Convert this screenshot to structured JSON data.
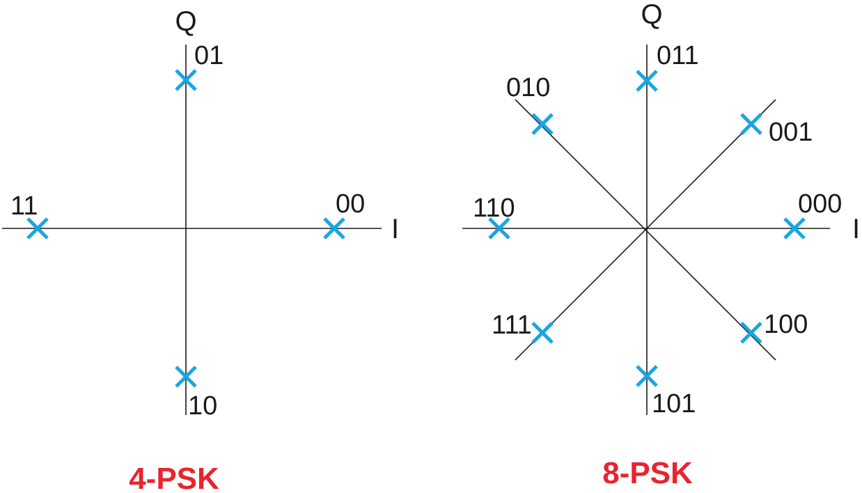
{
  "colors": {
    "marker": "#19a6e0",
    "title": "#e8242e",
    "axis": "#1a1a1a"
  },
  "diagrams": [
    {
      "title": "4-PSK",
      "axis_i": "I",
      "axis_q": "Q",
      "points": [
        {
          "label": "00",
          "angle_deg": 0
        },
        {
          "label": "01",
          "angle_deg": 90
        },
        {
          "label": "11",
          "angle_deg": 180
        },
        {
          "label": "10",
          "angle_deg": 270
        }
      ]
    },
    {
      "title": "8-PSK",
      "axis_i": "I",
      "axis_q": "Q",
      "points": [
        {
          "label": "000",
          "angle_deg": 0
        },
        {
          "label": "001",
          "angle_deg": 45
        },
        {
          "label": "011",
          "angle_deg": 90
        },
        {
          "label": "010",
          "angle_deg": 135
        },
        {
          "label": "110",
          "angle_deg": 180
        },
        {
          "label": "111",
          "angle_deg": 225
        },
        {
          "label": "101",
          "angle_deg": 270
        },
        {
          "label": "100",
          "angle_deg": 315
        }
      ]
    }
  ]
}
